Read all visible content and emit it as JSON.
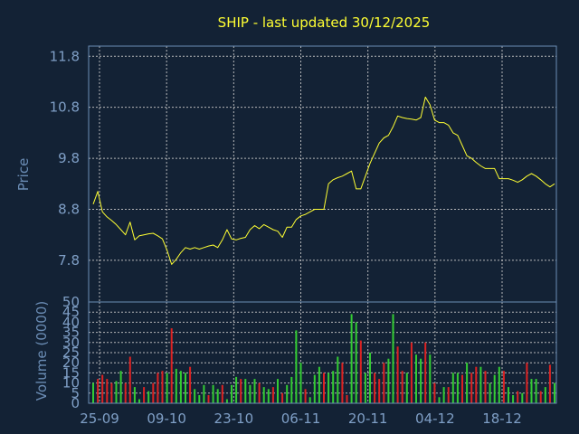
{
  "chart_data": [
    {
      "type": "line",
      "title": "SHIP - last updated 30/12/2025",
      "ylabel": "Price",
      "ylim": [
        7.0,
        12.0
      ],
      "yticks": [
        "11.8",
        "10.8",
        "9.8",
        "8.8",
        "7.8"
      ],
      "ytick_values": [
        11.8,
        10.8,
        9.8,
        8.8,
        7.8
      ],
      "grid": true,
      "color": "#ffff33",
      "series": [
        {
          "values": [
            8.9,
            9.15,
            8.75,
            8.65,
            8.58,
            8.5,
            8.4,
            8.3,
            8.55,
            8.2,
            8.28,
            8.3,
            8.32,
            8.33,
            8.28,
            8.22,
            8.0,
            7.72,
            7.82,
            7.95,
            8.05,
            8.02,
            8.05,
            8.02,
            8.05,
            8.08,
            8.1,
            8.05,
            8.2,
            8.4,
            8.22,
            8.2,
            8.23,
            8.25,
            8.4,
            8.48,
            8.42,
            8.5,
            8.45,
            8.4,
            8.37,
            8.25,
            8.45,
            8.45,
            8.6,
            8.67,
            8.7,
            8.75,
            8.8,
            8.8,
            8.8,
            9.3,
            9.38,
            9.42,
            9.45,
            9.5,
            9.55,
            9.2,
            9.2,
            9.45,
            9.7,
            9.9,
            10.1,
            10.2,
            10.25,
            10.42,
            10.63,
            10.6,
            10.58,
            10.57,
            10.55,
            10.6,
            11.0,
            10.85,
            10.55,
            10.5,
            10.5,
            10.45,
            10.3,
            10.25,
            10.05,
            9.85,
            9.8,
            9.72,
            9.65,
            9.6,
            9.6,
            9.6,
            9.4,
            9.4,
            9.4,
            9.37,
            9.33,
            9.38,
            9.45,
            9.5,
            9.45,
            9.38,
            9.3,
            9.24,
            9.3
          ]
        }
      ]
    },
    {
      "type": "bar",
      "ylabel": "Volume (0000)",
      "ylim": [
        0,
        50
      ],
      "yticks": [
        "50",
        "45",
        "40",
        "35",
        "30",
        "25",
        "20",
        "15",
        "10",
        "5",
        "0"
      ],
      "ytick_values": [
        50,
        45,
        40,
        35,
        30,
        25,
        20,
        15,
        10,
        5,
        0
      ],
      "xticks": [
        "25-09",
        "09-10",
        "23-10",
        "06-11",
        "20-11",
        "04-12",
        "18-12"
      ],
      "grid": true,
      "up_color": "#33cc33",
      "down_color": "#dd2222",
      "series": [
        {
          "values": [
            10,
            12,
            14,
            12,
            10,
            11,
            16,
            10,
            23,
            8,
            2,
            8,
            6,
            10,
            15,
            16,
            15,
            37,
            17,
            16,
            15,
            18,
            7,
            4,
            9,
            4,
            9,
            7,
            9,
            2,
            9,
            13,
            12,
            12,
            9,
            12,
            10,
            8,
            7,
            8,
            12,
            5,
            9,
            13,
            36,
            20,
            7,
            3,
            14,
            18,
            15,
            15,
            16,
            23,
            20,
            4,
            44,
            40,
            31,
            15,
            25,
            15,
            12,
            20,
            22,
            44,
            28,
            16,
            15,
            30,
            24,
            22,
            30,
            24,
            10,
            3,
            8,
            8,
            15,
            15,
            14,
            20,
            15,
            18,
            18,
            16,
            10,
            14,
            18,
            16,
            8,
            4,
            6,
            5,
            20,
            12,
            12,
            6,
            8,
            19,
            10
          ],
          "direction": [
            "g",
            "r",
            "r",
            "r",
            "r",
            "g",
            "g",
            "r",
            "r",
            "g",
            "g",
            "r",
            "g",
            "r",
            "r",
            "r",
            "g",
            "r",
            "g",
            "g",
            "g",
            "r",
            "g",
            "g",
            "g",
            "r",
            "g",
            "g",
            "r",
            "g",
            "g",
            "g",
            "r",
            "g",
            "g",
            "g",
            "r",
            "g",
            "g",
            "r",
            "g",
            "r",
            "g",
            "g",
            "g",
            "g",
            "r",
            "g",
            "g",
            "g",
            "r",
            "g",
            "g",
            "g",
            "r",
            "r",
            "g",
            "g",
            "r",
            "g",
            "g",
            "r",
            "r",
            "r",
            "g",
            "g",
            "r",
            "r",
            "g",
            "r",
            "g",
            "g",
            "r",
            "g",
            "r",
            "g",
            "g",
            "r",
            "g",
            "g",
            "r",
            "g",
            "r",
            "r",
            "g",
            "r",
            "g",
            "g",
            "g",
            "r",
            "g",
            "g",
            "r",
            "g",
            "r",
            "g",
            "g",
            "r",
            "g",
            "r",
            "g"
          ]
        }
      ]
    }
  ]
}
